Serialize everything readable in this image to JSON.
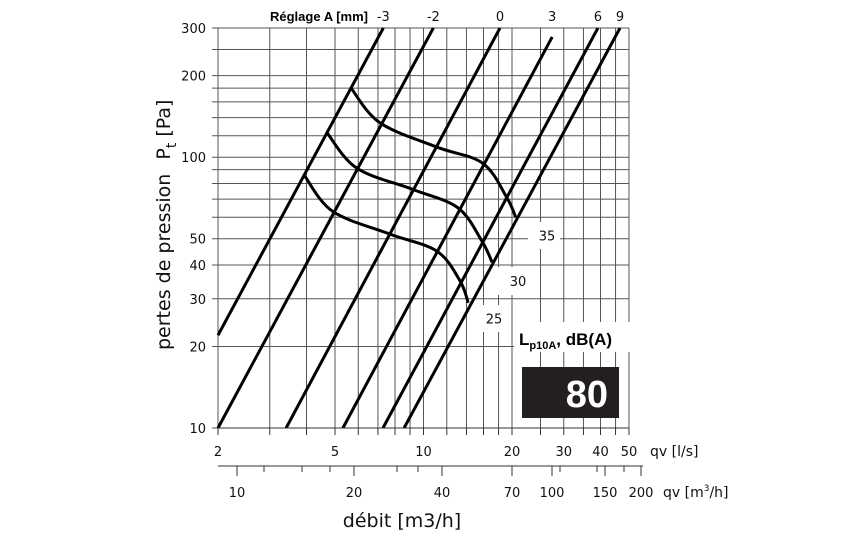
{
  "chart_data": {
    "type": "line",
    "title": "",
    "setting_title": "Réglage A [mm]",
    "xlabel": "débit [m3/h]",
    "ylabel": "pertes de pression",
    "ylabel_symbol": "P",
    "ylabel_subscript": "t",
    "ylabel_unit": "[Pa]",
    "x_scale": "log",
    "y_scale": "log",
    "xlim": [
      2,
      50
    ],
    "ylim": [
      10,
      300
    ],
    "grid": true,
    "x_ls_axis": {
      "label": "qv [l/s]",
      "ticks": [
        "2",
        "5",
        "10",
        "20",
        "30",
        "40",
        "50"
      ]
    },
    "x_m3h_axis": {
      "label_prefix": "qv [m",
      "label_sup": "3",
      "label_suffix": "/h]",
      "ticks": [
        "10",
        "20",
        "40",
        "70",
        "100",
        "150",
        "200"
      ]
    },
    "y_ticks": [
      "300",
      "200",
      "100",
      "50",
      "40",
      "30",
      "20",
      "10"
    ],
    "setting_lines": [
      {
        "name": "-3",
        "points": [
          [
            2,
            22
          ],
          [
            7.3,
            300
          ]
        ]
      },
      {
        "name": "-2",
        "points": [
          [
            2,
            10
          ],
          [
            10.8,
            300
          ]
        ]
      },
      {
        "name": "0",
        "points": [
          [
            3.41,
            10
          ],
          [
            18.2,
            300
          ]
        ]
      },
      {
        "name": "3",
        "points": [
          [
            5.32,
            10
          ],
          [
            27.4,
            278
          ]
        ]
      },
      {
        "name": "6",
        "points": [
          [
            7.28,
            10
          ],
          [
            39.2,
            300
          ]
        ]
      },
      {
        "name": "9",
        "points": [
          [
            8.59,
            10
          ],
          [
            46.6,
            300
          ]
        ]
      }
    ],
    "noise_curves": [
      {
        "name": "35",
        "points": [
          [
            5.67,
            180
          ],
          [
            7.11,
            134
          ],
          [
            11.1,
            109
          ],
          [
            15.9,
            95
          ],
          [
            19.2,
            71
          ],
          [
            20.6,
            60
          ]
        ]
      },
      {
        "name": "30",
        "points": [
          [
            4.7,
            123
          ],
          [
            5.94,
            91
          ],
          [
            9.21,
            76
          ],
          [
            13.1,
            65
          ],
          [
            15.8,
            49
          ],
          [
            17.1,
            41
          ]
        ]
      },
      {
        "name": "25",
        "points": [
          [
            3.95,
            85
          ],
          [
            4.92,
            63
          ],
          [
            7.69,
            52
          ],
          [
            11.1,
            45
          ],
          [
            13.3,
            35
          ],
          [
            14.2,
            29
          ]
        ]
      }
    ],
    "noise_label": {
      "main": "L",
      "sub": "p10A",
      "suffix": ", dB(A)"
    },
    "badge_value": "80"
  }
}
